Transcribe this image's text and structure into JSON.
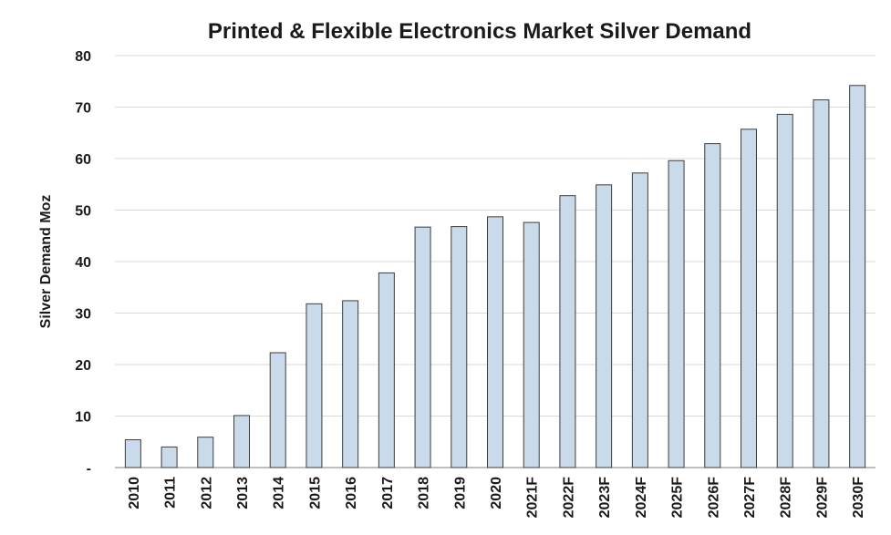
{
  "chart_data": {
    "type": "bar",
    "title": "Printed & Flexible Electronics Market  Silver Demand",
    "xlabel": "",
    "ylabel": "Silver Demand Moz",
    "ylim": [
      0,
      80
    ],
    "yticks": [
      {
        "value": 0,
        "label": "-"
      },
      {
        "value": 10,
        "label": "10"
      },
      {
        "value": 20,
        "label": "20"
      },
      {
        "value": 30,
        "label": "30"
      },
      {
        "value": 40,
        "label": "40"
      },
      {
        "value": 50,
        "label": "50"
      },
      {
        "value": 60,
        "label": "60"
      },
      {
        "value": 70,
        "label": "70"
      },
      {
        "value": 80,
        "label": "80"
      }
    ],
    "grid": true,
    "categories": [
      "2010",
      "2011",
      "2012",
      "2013",
      "2014",
      "2015",
      "2016",
      "2017",
      "2018",
      "2019",
      "2020",
      "2021F",
      "2022F",
      "2023F",
      "2024F",
      "2025F",
      "2026F",
      "2027F",
      "2028F",
      "2029F",
      "2030F"
    ],
    "values": [
      5.4,
      4.0,
      5.9,
      10.1,
      22.3,
      31.8,
      32.4,
      37.8,
      46.7,
      46.8,
      48.7,
      47.6,
      52.8,
      54.9,
      57.2,
      59.6,
      62.9,
      65.7,
      68.6,
      71.4,
      74.2
    ],
    "colors": {
      "bar_fill": "#c9daea",
      "bar_stroke": "#3d3d3d",
      "grid": "#d9d9d9"
    }
  }
}
